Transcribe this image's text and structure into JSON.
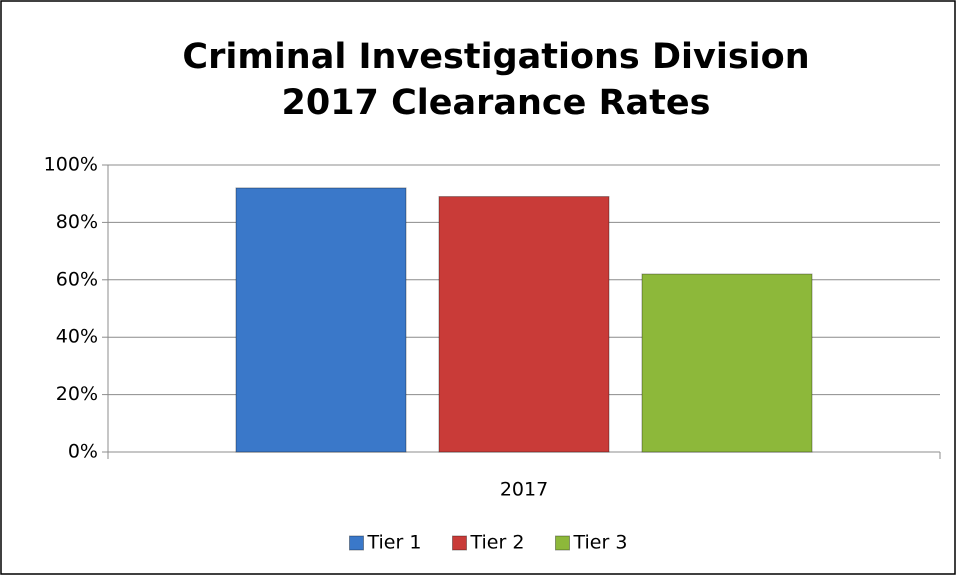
{
  "chart_data": {
    "type": "bar",
    "title": [
      "Criminal Investigations Division",
      "2017 Clearance Rates"
    ],
    "categories": [
      "2017"
    ],
    "series": [
      {
        "name": "Tier 1",
        "color": "#3a78c9",
        "values": [
          92
        ]
      },
      {
        "name": "Tier 2",
        "color": "#c93b38",
        "values": [
          89
        ]
      },
      {
        "name": "Tier 3",
        "color": "#8db83a",
        "values": [
          62
        ]
      }
    ],
    "ylim": [
      0,
      100
    ],
    "yticks": [
      {
        "value": 0,
        "label": "0%"
      },
      {
        "value": 20,
        "label": "20%"
      },
      {
        "value": 40,
        "label": "40%"
      },
      {
        "value": 60,
        "label": "60%"
      },
      {
        "value": 80,
        "label": "80%"
      },
      {
        "value": 100,
        "label": "100%"
      }
    ],
    "grid": true,
    "legend": "bottom"
  }
}
